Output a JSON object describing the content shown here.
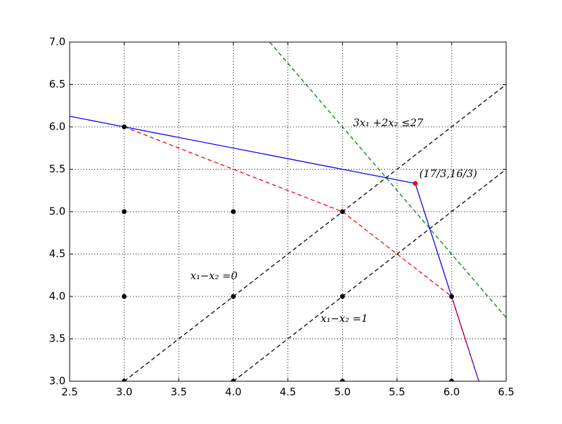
{
  "chart_data": {
    "type": "line",
    "xlim": [
      2.5,
      6.5
    ],
    "ylim": [
      3,
      7
    ],
    "xticks": [
      2.5,
      {
        "value": 3,
        "label": "3.0"
      },
      3.5,
      {
        "value": 4,
        "label": "4.0"
      },
      4.5,
      {
        "value": 5,
        "label": "5.0"
      },
      5.5,
      {
        "value": 6,
        "label": "6.0"
      },
      6.5
    ],
    "yticks": [
      {
        "value": 3,
        "label": "3.0"
      },
      3.5,
      {
        "value": 4,
        "label": "4.0"
      },
      4.5,
      {
        "value": 5,
        "label": "5.0"
      },
      5.5,
      {
        "value": 6,
        "label": "6.0"
      },
      6.5,
      {
        "value": 7,
        "label": "7.0"
      }
    ],
    "grid": true,
    "lines": [
      {
        "color": "#0000ff",
        "dashed": false,
        "x": [
          2.5,
          3,
          5.667,
          6,
          6.25
        ],
        "y": [
          6.125,
          6,
          5.333,
          4,
          3
        ]
      },
      {
        "color": "#ff0000",
        "dashed": true,
        "x": [
          3,
          5,
          6,
          6.25
        ],
        "y": [
          6,
          5,
          4,
          3
        ]
      },
      {
        "color": "#008000",
        "dashed": true,
        "x": [
          4.333,
          6.5
        ],
        "y": [
          7,
          3.75
        ]
      },
      {
        "color": "#000000",
        "dashed": true,
        "x": [
          3,
          6.5
        ],
        "y": [
          3,
          6.5
        ]
      },
      {
        "color": "#000000",
        "dashed": true,
        "x": [
          4,
          6.5
        ],
        "y": [
          3,
          5.5
        ]
      }
    ],
    "points": [
      {
        "color": "#000000",
        "x": [
          3,
          3,
          4,
          5,
          3,
          4,
          5,
          6,
          3,
          4,
          5,
          6
        ],
        "y": [
          6,
          5,
          5,
          5,
          4,
          4,
          4,
          4,
          3,
          3,
          3,
          3
        ]
      },
      {
        "color": "#ff0000",
        "x": [
          5.667
        ],
        "y": [
          5.333
        ]
      }
    ],
    "annotations": [
      "3x₁ +2x₂ ≤27",
      "(17/3,16/3)",
      "x₁−x₂ =0",
      "x₁−x₂ =1"
    ]
  }
}
